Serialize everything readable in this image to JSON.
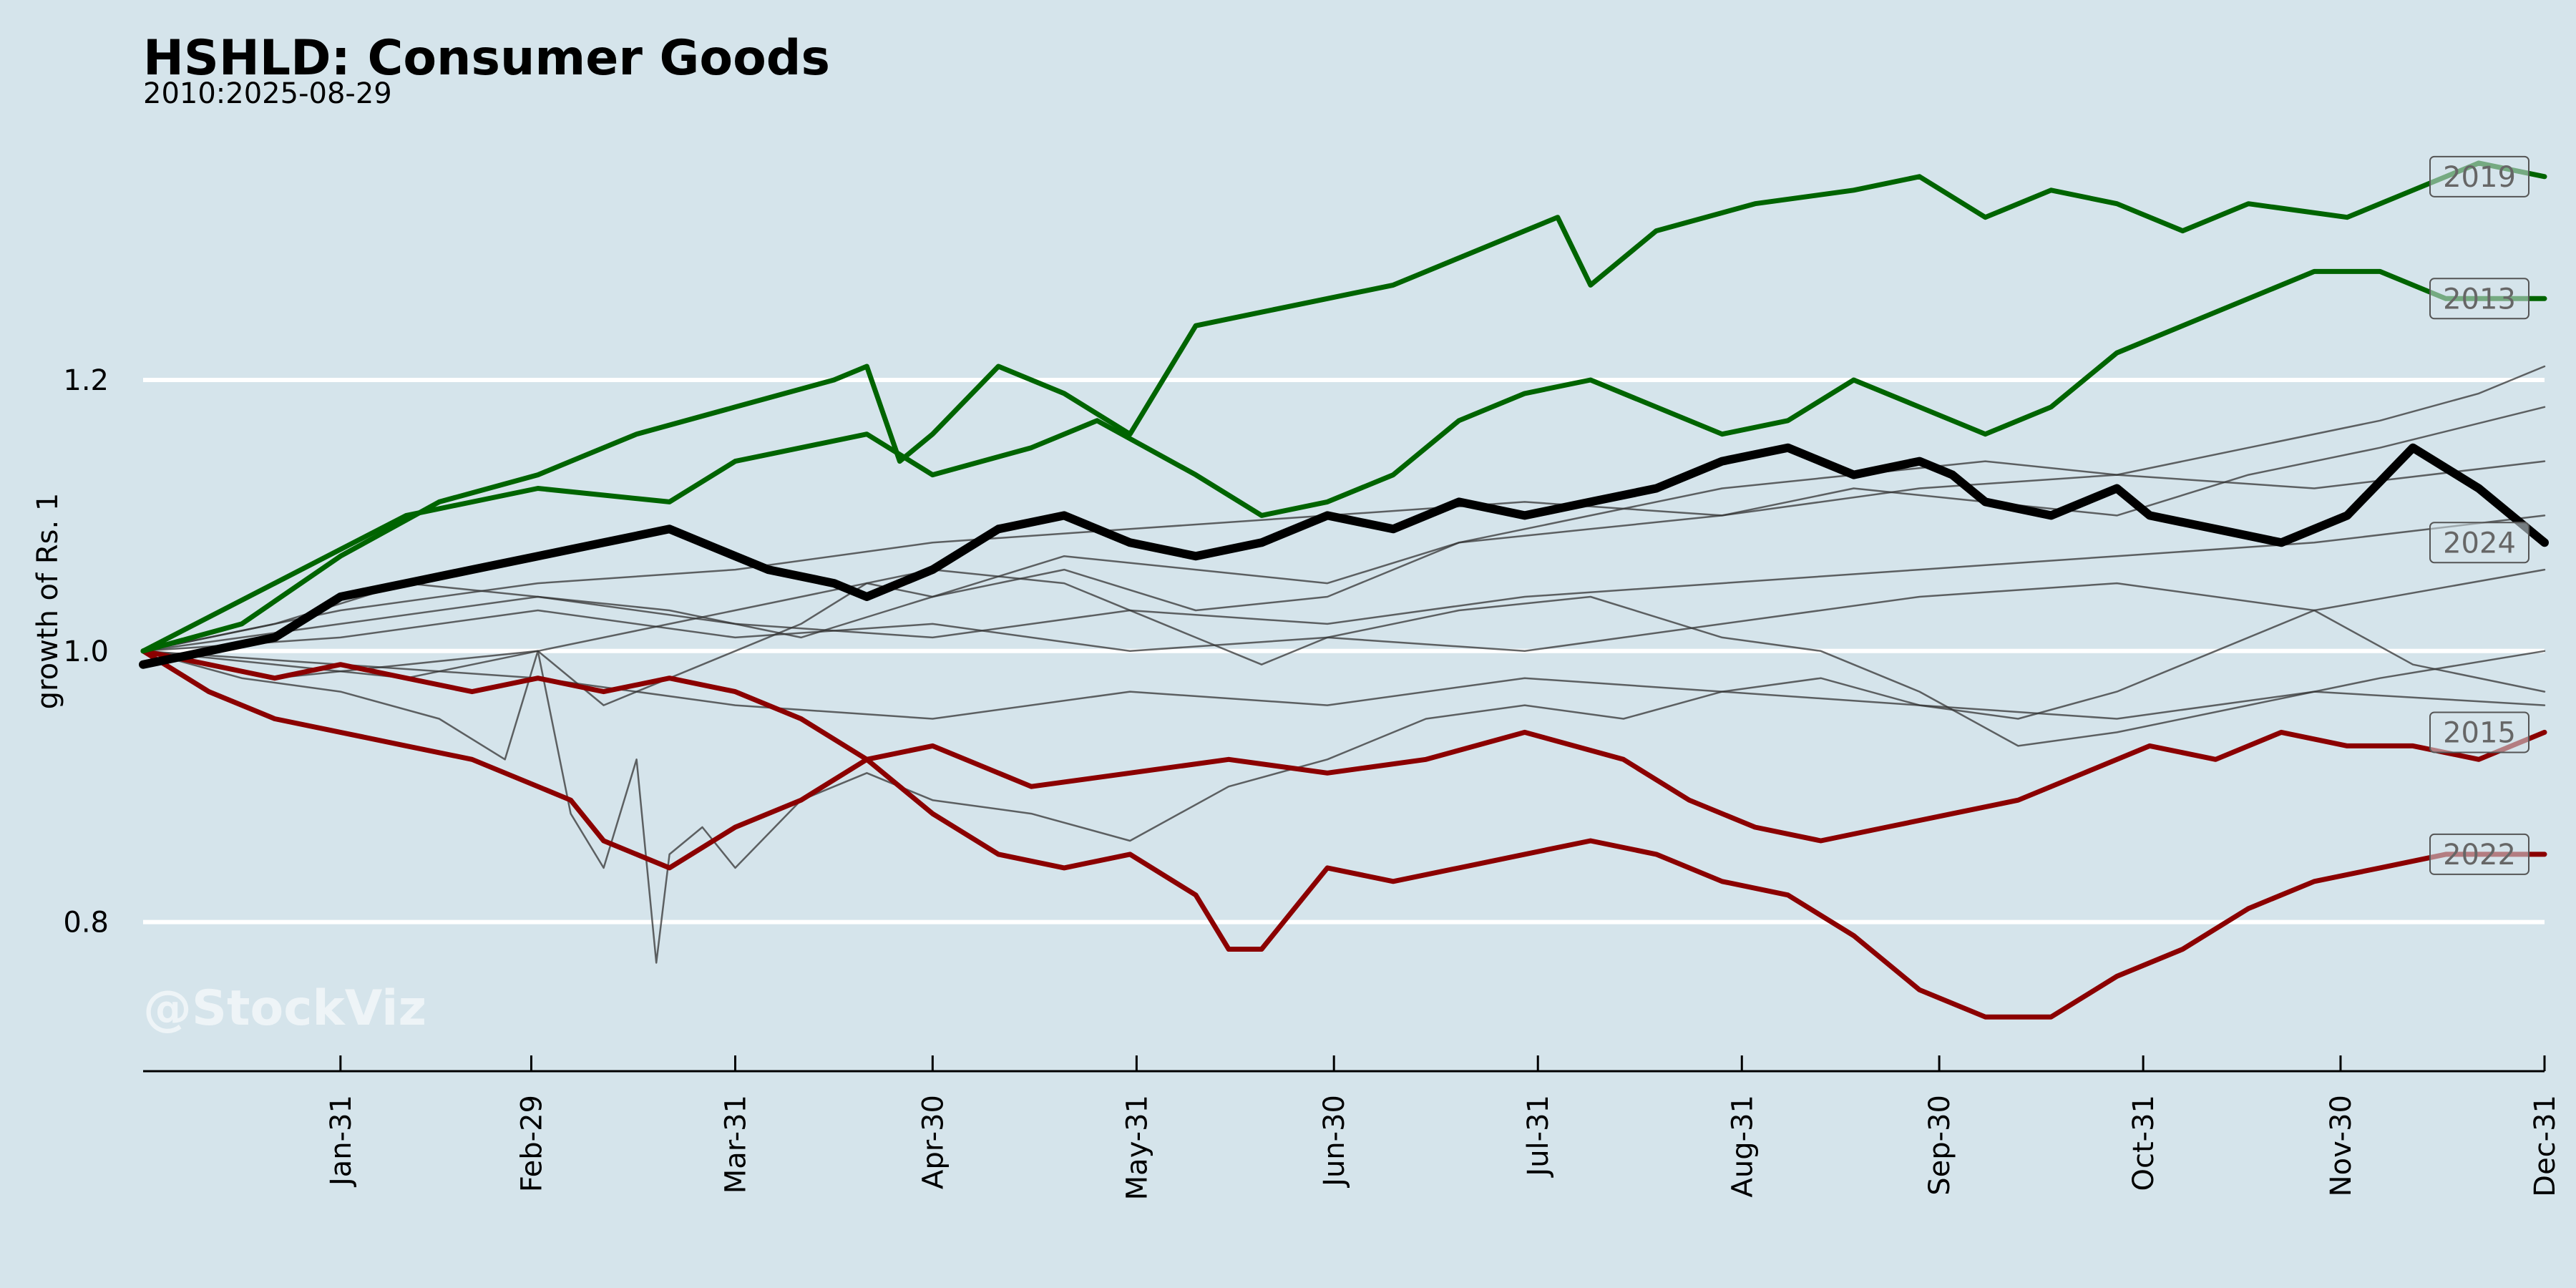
{
  "chart_data": {
    "type": "line",
    "title": "HSHLD: Consumer Goods",
    "subtitle": "2010:2025-08-29",
    "watermark": "@StockViz",
    "xlabel": "",
    "ylabel": "growth of Rs. 1",
    "ylim": [
      0.69,
      1.38
    ],
    "xlim": [
      0,
      365
    ],
    "grid": true,
    "y_ticks": [
      0.8,
      1.0,
      1.2
    ],
    "y_tick_labels": [
      "0.8",
      "1.0",
      "1.2"
    ],
    "x_ticks": [
      {
        "label": "Jan-31",
        "day": 30
      },
      {
        "label": "Feb-29",
        "day": 59
      },
      {
        "label": "Mar-31",
        "day": 90
      },
      {
        "label": "Apr-30",
        "day": 120
      },
      {
        "label": "May-31",
        "day": 151
      },
      {
        "label": "Jun-30",
        "day": 181
      },
      {
        "label": "Jul-31",
        "day": 212
      },
      {
        "label": "Aug-31",
        "day": 243
      },
      {
        "label": "Sep-30",
        "day": 273
      },
      {
        "label": "Oct-31",
        "day": 304
      },
      {
        "label": "Nov-30",
        "day": 334
      },
      {
        "label": "Dec-31",
        "day": 365
      }
    ],
    "colors": {
      "up": "#006400",
      "down": "#8b0000",
      "current": "#000000",
      "other": "#222222",
      "grid": "#ffffff",
      "axis": "#000000"
    },
    "series": [
      {
        "name": "2019",
        "labeled": true,
        "role": "up",
        "x": [
          0,
          15,
          30,
          45,
          60,
          75,
          90,
          105,
          110,
          115,
          120,
          130,
          140,
          150,
          160,
          170,
          180,
          190,
          200,
          210,
          215,
          220,
          230,
          245,
          260,
          270,
          280,
          290,
          300,
          310,
          320,
          335,
          345,
          355,
          365
        ],
        "values": [
          1.0,
          1.02,
          1.07,
          1.11,
          1.13,
          1.16,
          1.18,
          1.2,
          1.21,
          1.14,
          1.16,
          1.21,
          1.19,
          1.16,
          1.24,
          1.25,
          1.26,
          1.27,
          1.29,
          1.31,
          1.32,
          1.27,
          1.31,
          1.33,
          1.34,
          1.35,
          1.32,
          1.34,
          1.33,
          1.31,
          1.33,
          1.32,
          1.34,
          1.36,
          1.35
        ]
      },
      {
        "name": "2013",
        "labeled": true,
        "role": "up",
        "x": [
          0,
          20,
          40,
          60,
          80,
          90,
          110,
          120,
          135,
          145,
          160,
          170,
          180,
          190,
          200,
          210,
          220,
          230,
          240,
          250,
          260,
          270,
          280,
          290,
          300,
          310,
          320,
          330,
          340,
          350,
          365
        ],
        "values": [
          1.0,
          1.05,
          1.1,
          1.12,
          1.11,
          1.14,
          1.16,
          1.13,
          1.15,
          1.17,
          1.13,
          1.1,
          1.11,
          1.13,
          1.17,
          1.19,
          1.2,
          1.18,
          1.16,
          1.17,
          1.2,
          1.18,
          1.16,
          1.18,
          1.22,
          1.24,
          1.26,
          1.28,
          1.28,
          1.26,
          1.26
        ]
      },
      {
        "name": "2024",
        "labeled": true,
        "role": "current",
        "x": [
          0,
          10,
          20,
          30,
          40,
          50,
          60,
          70,
          80,
          85,
          95,
          105,
          110,
          120,
          130,
          140,
          150,
          160,
          170,
          180,
          190,
          200,
          210,
          220,
          230,
          240,
          250,
          260,
          270,
          275,
          280,
          290,
          300,
          305,
          315,
          325,
          335,
          345,
          355,
          365
        ],
        "values": [
          0.99,
          1.0,
          1.01,
          1.04,
          1.05,
          1.06,
          1.07,
          1.08,
          1.09,
          1.08,
          1.06,
          1.05,
          1.04,
          1.06,
          1.09,
          1.1,
          1.08,
          1.07,
          1.08,
          1.1,
          1.09,
          1.11,
          1.1,
          1.11,
          1.12,
          1.14,
          1.15,
          1.13,
          1.14,
          1.13,
          1.11,
          1.1,
          1.12,
          1.1,
          1.09,
          1.08,
          1.1,
          1.15,
          1.12,
          1.08
        ]
      },
      {
        "name": "2015",
        "labeled": true,
        "role": "down",
        "x": [
          0,
          10,
          20,
          30,
          40,
          50,
          60,
          65,
          70,
          80,
          90,
          100,
          110,
          120,
          135,
          150,
          165,
          180,
          195,
          210,
          225,
          235,
          245,
          255,
          265,
          275,
          285,
          295,
          305,
          315,
          325,
          335,
          345,
          355,
          365
        ],
        "values": [
          1.0,
          0.97,
          0.95,
          0.94,
          0.93,
          0.92,
          0.9,
          0.89,
          0.86,
          0.84,
          0.87,
          0.89,
          0.92,
          0.93,
          0.9,
          0.91,
          0.92,
          0.91,
          0.92,
          0.94,
          0.92,
          0.89,
          0.87,
          0.86,
          0.87,
          0.88,
          0.89,
          0.91,
          0.93,
          0.92,
          0.94,
          0.93,
          0.93,
          0.92,
          0.94
        ]
      },
      {
        "name": "2022",
        "labeled": true,
        "role": "down",
        "x": [
          0,
          10,
          20,
          30,
          40,
          50,
          60,
          70,
          80,
          90,
          100,
          110,
          120,
          130,
          140,
          150,
          160,
          165,
          170,
          175,
          180,
          190,
          200,
          210,
          220,
          230,
          240,
          250,
          260,
          270,
          280,
          290,
          300,
          310,
          320,
          330,
          340,
          350,
          365
        ],
        "values": [
          1.0,
          0.99,
          0.98,
          0.99,
          0.98,
          0.97,
          0.98,
          0.97,
          0.98,
          0.97,
          0.95,
          0.92,
          0.88,
          0.85,
          0.84,
          0.85,
          0.82,
          0.78,
          0.78,
          0.81,
          0.84,
          0.83,
          0.84,
          0.85,
          0.86,
          0.85,
          0.83,
          0.82,
          0.79,
          0.75,
          0.73,
          0.73,
          0.76,
          0.78,
          0.81,
          0.83,
          0.84,
          0.85,
          0.85
        ]
      },
      {
        "name": "",
        "labeled": false,
        "role": "other",
        "x": [
          0,
          20,
          40,
          60,
          80,
          100,
          120,
          140,
          160,
          180,
          200,
          220,
          240,
          260,
          280,
          300,
          320,
          340,
          355,
          365
        ],
        "values": [
          1.0,
          1.02,
          1.05,
          1.04,
          1.03,
          1.01,
          1.04,
          1.07,
          1.06,
          1.05,
          1.08,
          1.1,
          1.12,
          1.13,
          1.14,
          1.13,
          1.15,
          1.17,
          1.19,
          1.21
        ]
      },
      {
        "name": "",
        "labeled": false,
        "role": "other",
        "x": [
          0,
          20,
          40,
          60,
          70,
          80,
          90,
          100,
          110,
          120,
          140,
          160,
          180,
          200,
          220,
          240,
          260,
          280,
          300,
          320,
          340,
          365
        ],
        "values": [
          1.0,
          0.98,
          0.99,
          1.0,
          0.96,
          0.98,
          1.0,
          1.02,
          1.05,
          1.04,
          1.06,
          1.03,
          1.04,
          1.08,
          1.09,
          1.1,
          1.12,
          1.11,
          1.1,
          1.13,
          1.15,
          1.18
        ]
      },
      {
        "name": "",
        "labeled": false,
        "role": "other",
        "x": [
          0,
          20,
          40,
          60,
          80,
          100,
          120,
          140,
          160,
          170,
          180,
          200,
          220,
          240,
          255,
          270,
          285,
          300,
          320,
          340,
          365
        ],
        "values": [
          1.0,
          0.99,
          0.98,
          1.0,
          1.02,
          1.04,
          1.06,
          1.05,
          1.01,
          0.99,
          1.01,
          1.03,
          1.04,
          1.01,
          1.0,
          0.97,
          0.93,
          0.94,
          0.96,
          0.98,
          1.0
        ]
      },
      {
        "name": "",
        "labeled": false,
        "role": "other",
        "x": [
          0,
          15,
          30,
          45,
          55,
          60,
          65,
          70,
          75,
          78,
          80,
          85,
          90,
          100,
          110,
          120,
          135,
          150,
          165,
          180,
          195,
          210,
          225,
          240,
          255,
          270,
          285,
          300,
          315,
          330,
          345,
          365
        ],
        "values": [
          1.0,
          0.98,
          0.97,
          0.95,
          0.92,
          1.0,
          0.88,
          0.84,
          0.92,
          0.77,
          0.85,
          0.87,
          0.84,
          0.89,
          0.91,
          0.89,
          0.88,
          0.86,
          0.9,
          0.92,
          0.95,
          0.96,
          0.95,
          0.97,
          0.98,
          0.96,
          0.95,
          0.97,
          1.0,
          1.03,
          0.99,
          0.97
        ]
      },
      {
        "name": "",
        "labeled": false,
        "role": "other",
        "x": [
          0,
          30,
          60,
          90,
          120,
          150,
          180,
          210,
          240,
          270,
          300,
          330,
          365
        ],
        "values": [
          1.0,
          1.03,
          1.05,
          1.06,
          1.08,
          1.09,
          1.1,
          1.11,
          1.1,
          1.12,
          1.13,
          1.12,
          1.14
        ]
      },
      {
        "name": "",
        "labeled": false,
        "role": "other",
        "x": [
          0,
          30,
          60,
          90,
          120,
          150,
          180,
          210,
          240,
          270,
          300,
          330,
          365
        ],
        "values": [
          1.0,
          1.02,
          1.04,
          1.02,
          1.01,
          1.03,
          1.02,
          1.04,
          1.05,
          1.06,
          1.07,
          1.08,
          1.1
        ]
      },
      {
        "name": "",
        "labeled": false,
        "role": "other",
        "x": [
          0,
          30,
          60,
          90,
          120,
          150,
          180,
          210,
          240,
          270,
          300,
          330,
          365
        ],
        "values": [
          1.0,
          1.01,
          1.03,
          1.01,
          1.02,
          1.0,
          1.01,
          1.0,
          1.02,
          1.04,
          1.05,
          1.03,
          1.06
        ]
      },
      {
        "name": "",
        "labeled": false,
        "role": "other",
        "x": [
          0,
          30,
          60,
          90,
          120,
          150,
          180,
          210,
          240,
          270,
          300,
          330,
          365
        ],
        "values": [
          1.0,
          0.99,
          0.98,
          0.96,
          0.95,
          0.97,
          0.96,
          0.98,
          0.97,
          0.96,
          0.95,
          0.97,
          0.96
        ]
      }
    ]
  }
}
